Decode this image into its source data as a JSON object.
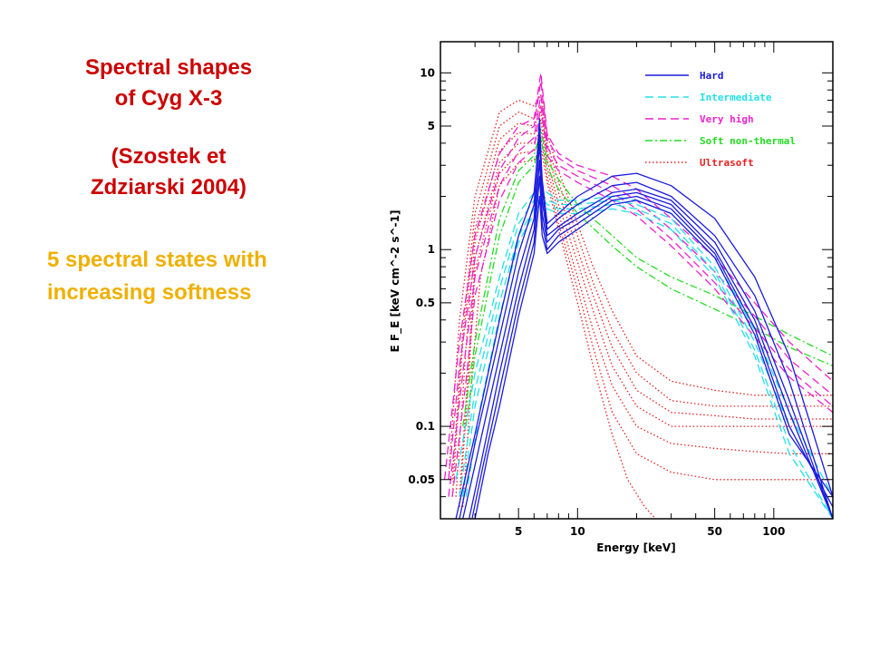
{
  "slide": {
    "title_line1": "Spectral shapes",
    "title_line2": "of Cyg X-3",
    "citation_line1": "(Szostek et",
    "citation_line2": "Zdziarski 2004)",
    "subtitle_line1": "5 spectral states with",
    "subtitle_line2": "increasing softness"
  },
  "colors": {
    "title": "#cc0000",
    "subtitle": "#f0b000",
    "hard": "#1a1adf",
    "intermediate": "#22e0e6",
    "very_high": "#ee22cc",
    "soft_non_thermal": "#22dd22",
    "ultrasoft": "#e82020"
  },
  "chart_data": {
    "type": "line",
    "xlabel": "Energy [keV]",
    "ylabel": "E F_E [keV cm^-2 s^-1]",
    "x_scale": "log",
    "y_scale": "log",
    "xlim": [
      2.0,
      200
    ],
    "ylim": [
      0.03,
      15
    ],
    "x_ticks": [
      5,
      10,
      50,
      100
    ],
    "x_tick_labels": [
      "5",
      "10",
      "50",
      "100"
    ],
    "y_ticks": [
      0.05,
      0.1,
      0.5,
      1,
      5,
      10
    ],
    "y_tick_labels": [
      "0.05",
      "0.1",
      "0.5",
      "1",
      "5",
      "10"
    ],
    "grid": false,
    "legend_position": "top-right",
    "series": [
      {
        "name": "Hard",
        "style": "solid",
        "color": "#1a1adf",
        "spectra": [
          {
            "x": [
              2.4,
              3,
              4,
              5,
              6,
              6.4,
              6.6,
              7,
              8,
              10,
              15,
              20,
              30,
              50,
              80,
              120,
              200
            ],
            "y": [
              0.03,
              0.09,
              0.4,
              1.2,
              2.1,
              4.5,
              2.5,
              1.4,
              1.6,
              2.0,
              2.6,
              2.7,
              2.3,
              1.5,
              0.7,
              0.25,
              0.04
            ]
          },
          {
            "x": [
              2.5,
              3,
              4,
              5,
              6,
              6.4,
              6.6,
              7,
              8,
              10,
              15,
              20,
              30,
              50,
              80,
              120,
              200
            ],
            "y": [
              0.03,
              0.08,
              0.32,
              0.95,
              1.8,
              5.5,
              2.2,
              1.3,
              1.5,
              1.8,
              2.3,
              2.4,
              2.0,
              1.2,
              0.55,
              0.18,
              0.03
            ]
          },
          {
            "x": [
              2.6,
              3,
              4,
              5,
              6,
              6.4,
              6.6,
              7,
              8,
              10,
              15,
              20,
              30,
              50,
              80,
              120,
              200
            ],
            "y": [
              0.03,
              0.06,
              0.25,
              0.75,
              1.5,
              4.0,
              1.9,
              1.2,
              1.35,
              1.6,
              2.1,
              2.2,
              1.9,
              1.1,
              0.45,
              0.14,
              0.03
            ]
          },
          {
            "x": [
              2.8,
              3.2,
              4,
              5,
              6,
              6.4,
              6.6,
              7,
              8,
              10,
              15,
              20,
              30,
              50,
              80,
              120,
              200
            ],
            "y": [
              0.03,
              0.06,
              0.2,
              0.6,
              1.3,
              3.2,
              1.6,
              1.1,
              1.3,
              1.5,
              2.0,
              2.1,
              1.8,
              1.0,
              0.4,
              0.12,
              0.03
            ]
          },
          {
            "x": [
              2.9,
              3.3,
              4,
              5,
              6,
              6.4,
              6.6,
              7,
              8,
              10,
              15,
              20,
              30,
              50,
              80,
              120,
              200
            ],
            "y": [
              0.03,
              0.06,
              0.16,
              0.5,
              1.1,
              2.6,
              1.4,
              1.0,
              1.2,
              1.4,
              1.9,
              2.0,
              1.7,
              0.95,
              0.36,
              0.1,
              0.035
            ]
          },
          {
            "x": [
              3.0,
              3.5,
              4,
              5,
              6,
              6.4,
              6.6,
              7,
              8,
              10,
              15,
              20,
              30,
              50,
              80,
              120,
              200
            ],
            "y": [
              0.03,
              0.07,
              0.13,
              0.42,
              0.95,
              2.0,
              1.2,
              0.95,
              1.1,
              1.3,
              1.8,
              1.9,
              1.6,
              0.9,
              0.33,
              0.09,
              0.04
            ]
          }
        ]
      },
      {
        "name": "Intermediate",
        "style": "dashed",
        "color": "#22e0e6",
        "spectra": [
          {
            "x": [
              2.4,
              3,
              4,
              5,
              6,
              6.5,
              7,
              8,
              10,
              15,
              20,
              30,
              50,
              80,
              120,
              200
            ],
            "y": [
              0.05,
              0.2,
              0.7,
              1.6,
              2.1,
              2.3,
              2.1,
              1.9,
              1.9,
              2.0,
              1.9,
              1.6,
              0.9,
              0.35,
              0.12,
              0.04
            ]
          },
          {
            "x": [
              2.5,
              3,
              4,
              5,
              6,
              6.5,
              7,
              8,
              10,
              15,
              20,
              30,
              50,
              80,
              120,
              200
            ],
            "y": [
              0.04,
              0.16,
              0.6,
              1.4,
              1.9,
              2.1,
              1.9,
              1.8,
              1.8,
              1.9,
              1.8,
              1.5,
              0.8,
              0.3,
              0.1,
              0.035
            ]
          },
          {
            "x": [
              2.6,
              3,
              4,
              5,
              6,
              6.5,
              7,
              8,
              10,
              15,
              20,
              30,
              50,
              80,
              120,
              200
            ],
            "y": [
              0.04,
              0.13,
              0.5,
              1.2,
              1.7,
              2.0,
              1.8,
              1.7,
              1.7,
              1.8,
              1.7,
              1.4,
              0.75,
              0.27,
              0.08,
              0.03
            ]
          },
          {
            "x": [
              2.7,
              3.2,
              4,
              5,
              6,
              6.5,
              7,
              8,
              10,
              15,
              20,
              30,
              50,
              80,
              120,
              200
            ],
            "y": [
              0.04,
              0.13,
              0.42,
              1.1,
              1.6,
              1.9,
              1.7,
              1.6,
              1.6,
              1.7,
              1.6,
              1.3,
              0.7,
              0.25,
              0.07,
              0.03
            ]
          }
        ]
      },
      {
        "name": "Very high",
        "style": "dashed",
        "color": "#ee22cc",
        "spectra": [
          {
            "x": [
              2.1,
              2.5,
              3,
              4,
              5,
              6,
              6.5,
              7,
              8,
              10,
              15,
              20,
              30,
              50,
              80,
              120,
              200
            ],
            "y": [
              0.05,
              0.3,
              1.2,
              3.5,
              5.0,
              5.5,
              10.0,
              4.5,
              3.5,
              3.0,
              2.6,
              2.2,
              1.5,
              0.9,
              0.5,
              0.3,
              0.18
            ]
          },
          {
            "x": [
              2.2,
              2.5,
              3,
              4,
              5,
              6,
              6.5,
              7,
              8,
              10,
              15,
              20,
              30,
              50,
              80,
              120,
              200
            ],
            "y": [
              0.05,
              0.22,
              0.9,
              2.8,
              4.3,
              5.0,
              9.0,
              4.2,
              3.3,
              2.8,
              2.3,
              1.9,
              1.3,
              0.75,
              0.42,
              0.24,
              0.15
            ]
          },
          {
            "x": [
              2.2,
              2.6,
              3,
              4,
              5,
              6,
              6.5,
              7,
              8,
              10,
              15,
              20,
              30,
              50,
              80,
              120,
              200
            ],
            "y": [
              0.04,
              0.2,
              0.7,
              2.3,
              3.6,
              4.3,
              7.5,
              3.8,
              3.0,
              2.6,
              2.1,
              1.7,
              1.15,
              0.65,
              0.36,
              0.21,
              0.13
            ]
          },
          {
            "x": [
              2.3,
              2.7,
              3,
              4,
              5,
              6,
              6.5,
              7,
              8,
              10,
              15,
              20,
              30,
              50,
              80,
              120,
              200
            ],
            "y": [
              0.04,
              0.18,
              0.55,
              1.9,
              3.1,
              3.7,
              6.5,
              3.4,
              2.8,
              2.4,
              1.9,
              1.55,
              1.05,
              0.6,
              0.32,
              0.19,
              0.12
            ]
          }
        ]
      },
      {
        "name": "Soft non-thermal",
        "style": "dashdot",
        "color": "#22dd22",
        "spectra": [
          {
            "x": [
              2.6,
              3,
              4,
              5,
              6,
              6.5,
              7,
              8,
              10,
              15,
              20,
              30,
              50,
              80,
              120,
              200
            ],
            "y": [
              0.1,
              0.3,
              1.5,
              2.8,
              3.4,
              4.8,
              3.2,
              2.5,
              1.8,
              1.2,
              0.9,
              0.7,
              0.55,
              0.42,
              0.33,
              0.25
            ]
          },
          {
            "x": [
              2.7,
              3,
              4,
              5,
              6,
              6.5,
              7,
              8,
              10,
              15,
              20,
              30,
              50,
              80,
              120,
              200
            ],
            "y": [
              0.1,
              0.25,
              1.2,
              2.4,
              3.0,
              4.2,
              2.9,
              2.2,
              1.6,
              1.05,
              0.8,
              0.6,
              0.46,
              0.36,
              0.28,
              0.22
            ]
          }
        ]
      },
      {
        "name": "Ultrasoft",
        "style": "dotted",
        "color": "#e82020",
        "spectra": [
          {
            "x": [
              2.2,
              2.5,
              3,
              4,
              5,
              6,
              6.5,
              7,
              8,
              10,
              12,
              15,
              20,
              30,
              50,
              80,
              120,
              200
            ],
            "y": [
              0.05,
              0.4,
              2.0,
              6.0,
              7.0,
              6.5,
              7.5,
              4.5,
              2.8,
              1.4,
              0.8,
              0.45,
              0.25,
              0.18,
              0.16,
              0.15,
              0.15,
              0.15
            ]
          },
          {
            "x": [
              2.3,
              2.6,
              3,
              4,
              5,
              6,
              6.5,
              7,
              8,
              10,
              12,
              15,
              20,
              30,
              50,
              80,
              120,
              200
            ],
            "y": [
              0.05,
              0.35,
              1.6,
              5.0,
              6.0,
              5.5,
              6.5,
              4.0,
              2.4,
              1.2,
              0.65,
              0.35,
              0.2,
              0.14,
              0.13,
              0.13,
              0.13,
              0.13
            ]
          },
          {
            "x": [
              2.3,
              2.6,
              3,
              4,
              5,
              6,
              6.5,
              7,
              8,
              10,
              12,
              15,
              20,
              30,
              50,
              80,
              120,
              200
            ],
            "y": [
              0.04,
              0.3,
              1.3,
              4.2,
              5.2,
              5.0,
              6.0,
              3.6,
              2.1,
              1.0,
              0.55,
              0.28,
              0.16,
              0.12,
              0.115,
              0.11,
              0.11,
              0.11
            ]
          },
          {
            "x": [
              2.4,
              2.7,
              3,
              4,
              5,
              6,
              6.5,
              7,
              8,
              10,
              12,
              15,
              20,
              30,
              50,
              80,
              120,
              200
            ],
            "y": [
              0.04,
              0.28,
              1.1,
              3.6,
              4.6,
              4.5,
              5.4,
              3.2,
              1.8,
              0.85,
              0.45,
              0.22,
              0.13,
              0.1,
              0.1,
              0.1,
              0.1,
              0.1
            ]
          },
          {
            "x": [
              2.5,
              2.8,
              3,
              4,
              5,
              6,
              6.5,
              7,
              8,
              10,
              12,
              15,
              20,
              30,
              50,
              80,
              120,
              200
            ],
            "y": [
              0.04,
              0.25,
              0.9,
              3.1,
              4.0,
              4.0,
              4.8,
              2.9,
              1.6,
              0.7,
              0.35,
              0.17,
              0.1,
              0.08,
              0.075,
              0.072,
              0.07,
              0.07
            ]
          },
          {
            "x": [
              2.5,
              2.8,
              3,
              4,
              5,
              6,
              6.5,
              7,
              8,
              10,
              12,
              15,
              20,
              30,
              50,
              80,
              120,
              200
            ],
            "y": [
              0.035,
              0.2,
              0.75,
              2.7,
              3.5,
              3.6,
              4.3,
              2.6,
              1.4,
              0.6,
              0.28,
              0.12,
              0.07,
              0.055,
              0.05,
              0.05,
              0.05,
              0.05
            ]
          },
          {
            "x": [
              2.6,
              2.9,
              3.2,
              4,
              5,
              6,
              6.5,
              7,
              8,
              10,
              12,
              15,
              18,
              22,
              25
            ],
            "y": [
              0.035,
              0.2,
              0.7,
              2.3,
              3.1,
              3.2,
              3.8,
              2.4,
              1.3,
              0.5,
              0.22,
              0.09,
              0.05,
              0.035,
              0.03
            ]
          }
        ]
      }
    ]
  }
}
